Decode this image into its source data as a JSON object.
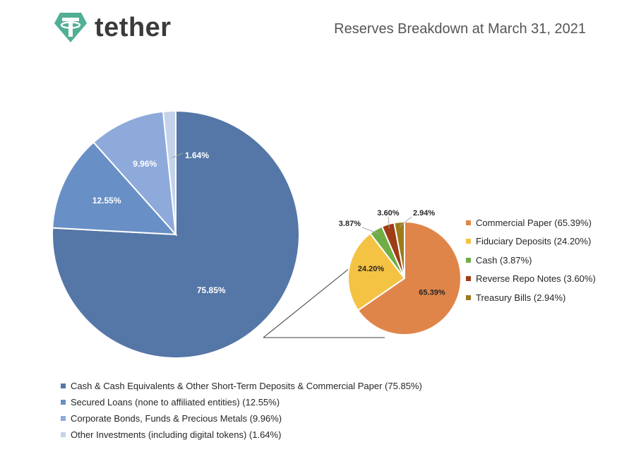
{
  "brand": {
    "name": "tether",
    "logo_color": "#50af95"
  },
  "title": "Reserves Breakdown at March 31, 2021",
  "chart_data": [
    {
      "type": "pie",
      "slices": [
        {
          "label": "Cash & Cash Equivalents & Other Short-Term Deposits & Commercial Paper (75.85%)",
          "value": 75.85,
          "data_label": "75.85%",
          "color": "#5577a7"
        },
        {
          "label": "Secured Loans (none to affiliated entities) (12.55%)",
          "value": 12.55,
          "data_label": "12.55%",
          "color": "#6890c6"
        },
        {
          "label": "Corporate Bonds, Funds & Precious Metals (9.96%)",
          "value": 9.96,
          "data_label": "9.96%",
          "color": "#8eaadb"
        },
        {
          "label": "Other Investments (including digital tokens) (1.64%)",
          "value": 1.64,
          "data_label": "1.64%",
          "color": "#c5d3ea"
        }
      ],
      "legend_position": "bottom"
    },
    {
      "type": "pie",
      "slices": [
        {
          "label": "Commercial Paper (65.39%)",
          "value": 65.39,
          "data_label": "65.39%",
          "color": "#e0854a"
        },
        {
          "label": "Fiduciary Deposits (24.20%)",
          "value": 24.2,
          "data_label": "24.20%",
          "color": "#f4c343"
        },
        {
          "label": "Cash (3.87%)",
          "value": 3.87,
          "data_label": "3.87%",
          "color": "#70ad47"
        },
        {
          "label": "Reverse Repo Notes (3.60%)",
          "value": 3.6,
          "data_label": "3.60%",
          "color": "#9e3d16"
        },
        {
          "label": "Treasury Bills (2.94%)",
          "value": 2.94,
          "data_label": "2.94%",
          "color": "#9c7b1a"
        }
      ],
      "legend_position": "right"
    }
  ]
}
